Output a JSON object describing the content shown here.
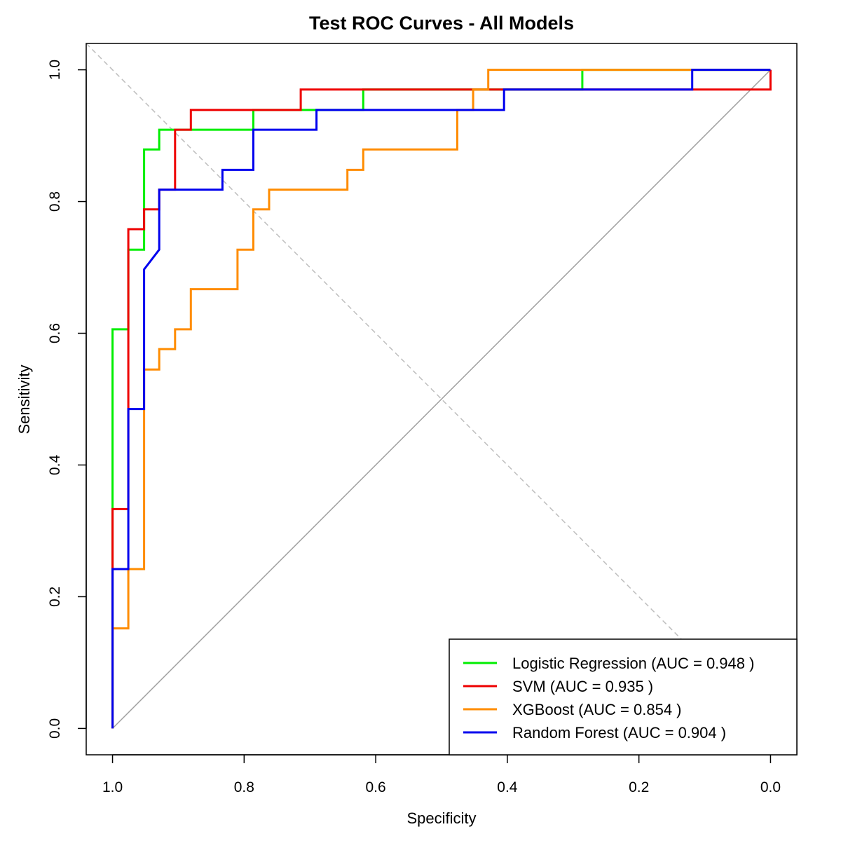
{
  "chart_data": {
    "type": "line",
    "title": "Test ROC Curves - All Models",
    "xlabel": "Specificity",
    "ylabel": "Sensitivity",
    "x_reversed": true,
    "xlim": [
      1.04,
      -0.04
    ],
    "ylim": [
      -0.04,
      1.04
    ],
    "xticks": [
      "1.0",
      "0.8",
      "0.6",
      "0.4",
      "0.2",
      "0.0"
    ],
    "yticks": [
      "0.0",
      "0.2",
      "0.4",
      "0.6",
      "0.8",
      "1.0"
    ],
    "legend_position": "bottom-right",
    "grid": false,
    "series": [
      {
        "name": "Logistic Regression (AUC = 0.948 )",
        "color": "#00ee00",
        "points": [
          [
            1.0,
            0.0
          ],
          [
            1.0,
            0.606
          ],
          [
            0.976,
            0.606
          ],
          [
            0.976,
            0.727
          ],
          [
            0.952,
            0.727
          ],
          [
            0.952,
            0.879
          ],
          [
            0.929,
            0.879
          ],
          [
            0.929,
            0.909
          ],
          [
            0.786,
            0.909
          ],
          [
            0.786,
            0.939
          ],
          [
            0.619,
            0.939
          ],
          [
            0.619,
            0.97
          ],
          [
            0.286,
            0.97
          ],
          [
            0.286,
            1.0
          ],
          [
            0.0,
            1.0
          ]
        ]
      },
      {
        "name": "SVM (AUC = 0.935 )",
        "color": "#ee0000",
        "points": [
          [
            1.0,
            0.0
          ],
          [
            1.0,
            0.333
          ],
          [
            0.976,
            0.333
          ],
          [
            0.976,
            0.758
          ],
          [
            0.952,
            0.758
          ],
          [
            0.952,
            0.788
          ],
          [
            0.929,
            0.788
          ],
          [
            0.929,
            0.818
          ],
          [
            0.905,
            0.818
          ],
          [
            0.905,
            0.909
          ],
          [
            0.881,
            0.909
          ],
          [
            0.881,
            0.939
          ],
          [
            0.714,
            0.939
          ],
          [
            0.714,
            0.97
          ],
          [
            0.0,
            0.97
          ],
          [
            0.0,
            1.0
          ]
        ]
      },
      {
        "name": "XGBoost (AUC = 0.854 )",
        "color": "#ff8c00",
        "points": [
          [
            1.0,
            0.0
          ],
          [
            1.0,
            0.152
          ],
          [
            0.976,
            0.152
          ],
          [
            0.976,
            0.242
          ],
          [
            0.952,
            0.242
          ],
          [
            0.952,
            0.364
          ],
          [
            0.952,
            0.545
          ],
          [
            0.929,
            0.545
          ],
          [
            0.929,
            0.576
          ],
          [
            0.905,
            0.576
          ],
          [
            0.905,
            0.606
          ],
          [
            0.881,
            0.606
          ],
          [
            0.881,
            0.667
          ],
          [
            0.81,
            0.667
          ],
          [
            0.81,
            0.727
          ],
          [
            0.786,
            0.727
          ],
          [
            0.786,
            0.788
          ],
          [
            0.762,
            0.788
          ],
          [
            0.762,
            0.818
          ],
          [
            0.643,
            0.818
          ],
          [
            0.643,
            0.848
          ],
          [
            0.619,
            0.848
          ],
          [
            0.619,
            0.879
          ],
          [
            0.476,
            0.879
          ],
          [
            0.476,
            0.939
          ],
          [
            0.452,
            0.939
          ],
          [
            0.452,
            0.97
          ],
          [
            0.429,
            0.97
          ],
          [
            0.429,
            1.0
          ],
          [
            0.0,
            1.0
          ]
        ]
      },
      {
        "name": "Random Forest (AUC = 0.904 )",
        "color": "#0000ee",
        "points": [
          [
            1.0,
            0.0
          ],
          [
            1.0,
            0.242
          ],
          [
            0.976,
            0.242
          ],
          [
            0.976,
            0.485
          ],
          [
            0.952,
            0.485
          ],
          [
            0.952,
            0.697
          ],
          [
            0.929,
            0.727
          ],
          [
            0.929,
            0.818
          ],
          [
            0.833,
            0.818
          ],
          [
            0.833,
            0.848
          ],
          [
            0.786,
            0.848
          ],
          [
            0.786,
            0.909
          ],
          [
            0.69,
            0.909
          ],
          [
            0.69,
            0.939
          ],
          [
            0.405,
            0.939
          ],
          [
            0.405,
            0.97
          ],
          [
            0.119,
            0.97
          ],
          [
            0.119,
            1.0
          ],
          [
            0.0,
            1.0
          ]
        ]
      }
    ],
    "reference_lines": [
      {
        "name": "chance-diagonal",
        "color": "#a0a0a0",
        "style": "solid",
        "from": [
          1.0,
          0.0
        ],
        "to": [
          0.0,
          1.0
        ]
      },
      {
        "name": "dashed-diagonal",
        "color": "#bebebe",
        "style": "dashed",
        "from": [
          1.04,
          1.04
        ],
        "to": [
          -0.04,
          -0.04
        ]
      }
    ]
  }
}
